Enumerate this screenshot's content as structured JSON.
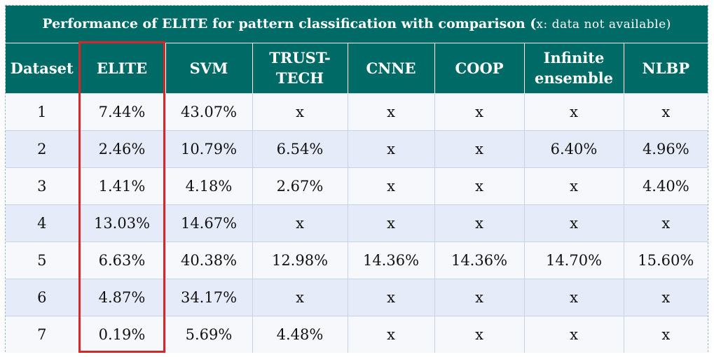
{
  "table": {
    "title": "Performance of ELITE for pattern classification with comparison (",
    "title_note": "x: data not available)",
    "headers": [
      "Dataset",
      "ELITE",
      "SVM",
      "TRUST-TECH",
      "CNNE",
      "COOP",
      "Infinite ensemble",
      "NLBP"
    ],
    "header_lines": [
      [
        "Dataset"
      ],
      [
        "ELITE"
      ],
      [
        "SVM"
      ],
      [
        "TRUST-",
        "TECH"
      ],
      [
        "CNNE"
      ],
      [
        "COOP"
      ],
      [
        "Infinite",
        "ensemble"
      ],
      [
        "NLBP"
      ]
    ],
    "rows": [
      [
        "1",
        "7.44%",
        "43.07%",
        "x",
        "x",
        "x",
        "x",
        "x"
      ],
      [
        "2",
        "2.46%",
        "10.79%",
        "6.54%",
        "x",
        "x",
        "6.40%",
        "4.96%"
      ],
      [
        "3",
        "1.41%",
        "4.18%",
        "2.67%",
        "x",
        "x",
        "x",
        "4.40%"
      ],
      [
        "4",
        "13.03%",
        "14.67%",
        "x",
        "x",
        "x",
        "x",
        "x"
      ],
      [
        "5",
        "6.63%",
        "40.38%",
        "12.98%",
        "14.36%",
        "14.36%",
        "14.70%",
        "15.60%"
      ],
      [
        "6",
        "4.87%",
        "34.17%",
        "x",
        "x",
        "x",
        "x",
        "x"
      ],
      [
        "7",
        "0.19%",
        "5.69%",
        "4.48%",
        "x",
        "x",
        "x",
        "x"
      ]
    ]
  },
  "colors": {
    "header_bg": "#006a67",
    "row_odd": "#f6f8fc",
    "row_even": "#e5ebf8",
    "highlight_border": "#d62828"
  }
}
